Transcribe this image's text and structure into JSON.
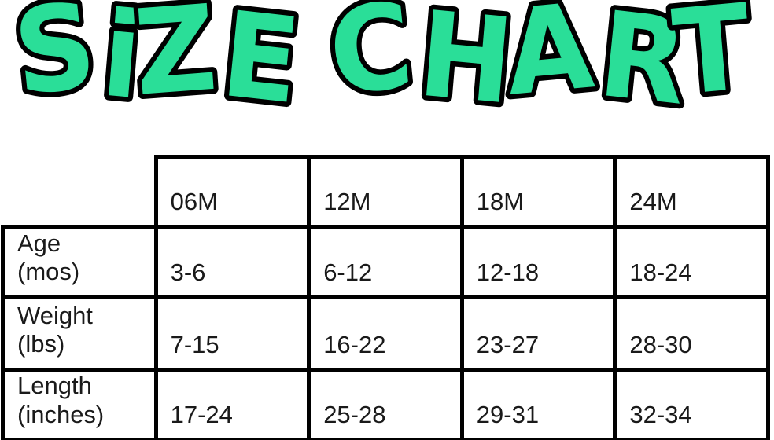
{
  "title": "SiZE CHART",
  "colors": {
    "background": "#FFFFFF",
    "table_border": "#000000",
    "text": "#1A1A1A",
    "title_fill": "#2ADE98",
    "title_outline": "#000000"
  },
  "chart_data": {
    "type": "table",
    "title": "SIZE CHART",
    "columns": [
      "",
      "06M",
      "12M",
      "18M",
      "24M"
    ],
    "rows": [
      {
        "label": "Age (mos)",
        "values": [
          "3-6",
          "6-12",
          "12-18",
          "18-24"
        ]
      },
      {
        "label": "Weight (lbs)",
        "values": [
          "7-15",
          "16-22",
          "23-27",
          "28-30"
        ]
      },
      {
        "label": "Length (inches)",
        "values": [
          "17-24",
          "25-28",
          "29-31",
          "32-34"
        ]
      }
    ]
  }
}
